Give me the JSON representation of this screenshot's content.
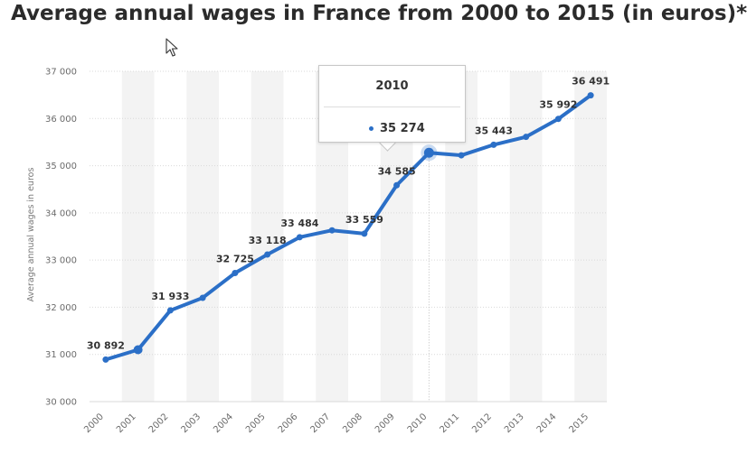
{
  "title": "Average annual wages in France from 2000 to 2015 (in euros)*",
  "colors": {
    "line": "#2b6fc7",
    "band": "#f3f3f3",
    "grid": "#d9d9d9",
    "tick_text": "#6b6b6b",
    "label_text": "#333333"
  },
  "tooltip": {
    "year": "2010",
    "value": "35 274"
  },
  "chart_data": {
    "type": "line",
    "title": "Average annual wages in France from 2000 to 2015 (in euros)*",
    "xlabel": "",
    "ylabel": "Average annual wages in euros",
    "categories": [
      "2000",
      "2001",
      "2002",
      "2003",
      "2004",
      "2005",
      "2006",
      "2007",
      "2008",
      "2009",
      "2010",
      "2011",
      "2012",
      "2013",
      "2014",
      "2015"
    ],
    "values": [
      30892,
      31100,
      31933,
      32200,
      32725,
      33118,
      33484,
      33630,
      33559,
      34585,
      35274,
      35220,
      35443,
      35610,
      35992,
      36491
    ],
    "data_labels": [
      "30 892",
      "",
      "31 933",
      "",
      "32 725",
      "33 118",
      "33 484",
      "",
      "33 559",
      "34 585",
      "",
      "",
      "35 443",
      "",
      "35 992",
      "36 491"
    ],
    "ylim": [
      30000,
      37000
    ],
    "yticks": [
      30000,
      31000,
      32000,
      33000,
      34000,
      35000,
      36000,
      37000
    ],
    "ytick_labels": [
      "30 000",
      "31 000",
      "32 000",
      "33 000",
      "34 000",
      "35 000",
      "36 000",
      "37 000"
    ],
    "highlighted": "2010",
    "grid": true,
    "legend": "none"
  }
}
